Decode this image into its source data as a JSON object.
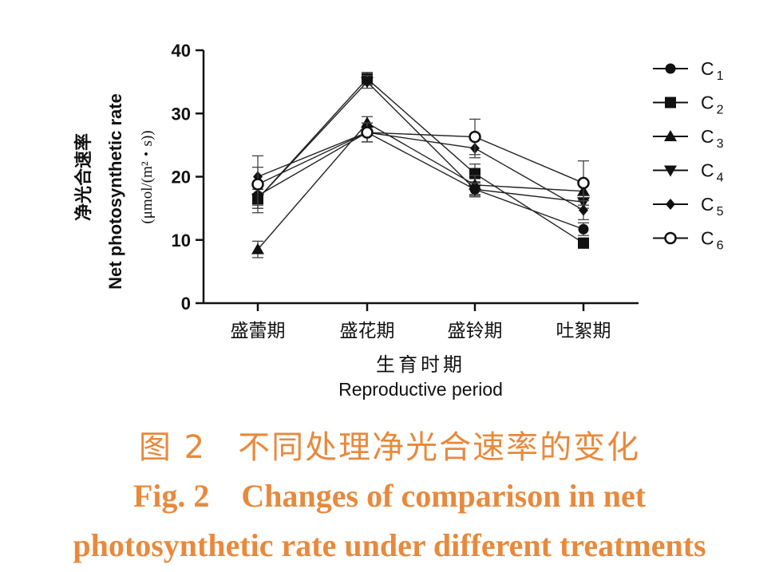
{
  "chart_data": {
    "type": "line",
    "ylabel_cn": "净光合速率",
    "ylabel_en": "Net photosynthetic rate",
    "ylabel_unit": "(μmol/(m²・s))",
    "xlabel_cn": "生育时期",
    "xlabel_en": "Reproductive period",
    "categories": [
      "盛蕾期",
      "盛花期",
      "盛铃期",
      "吐絮期"
    ],
    "ylim": [
      0,
      40
    ],
    "yticks": [
      0,
      10,
      20,
      30,
      40
    ],
    "grid": false,
    "legend_position": "right",
    "series": [
      {
        "name": "C",
        "sub": "1",
        "marker": "circle",
        "values": [
          17.0,
          27.0,
          18.0,
          11.7
        ],
        "err": [
          1.5,
          1.5,
          1.2,
          1.0
        ]
      },
      {
        "name": "C",
        "sub": "2",
        "marker": "square",
        "values": [
          16.5,
          35.5,
          20.5,
          9.5
        ],
        "err": [
          1.5,
          1.0,
          1.5,
          0.8
        ]
      },
      {
        "name": "C",
        "sub": "3",
        "marker": "triangle-up",
        "values": [
          8.5,
          28.5,
          18.7,
          17.7
        ],
        "err": [
          1.3,
          1.0,
          1.5,
          1.2
        ]
      },
      {
        "name": "C",
        "sub": "4",
        "marker": "triangle-down",
        "values": [
          16.5,
          35.0,
          18.0,
          16.0
        ],
        "err": [
          1.5,
          1.0,
          1.0,
          1.0
        ]
      },
      {
        "name": "C",
        "sub": "5",
        "marker": "diamond",
        "values": [
          20.0,
          27.0,
          24.5,
          14.7
        ],
        "err": [
          1.5,
          1.5,
          1.5,
          1.5
        ]
      },
      {
        "name": "C",
        "sub": "6",
        "marker": "circle-open",
        "values": [
          18.8,
          27.0,
          26.3,
          19.0
        ],
        "err": [
          4.5,
          1.5,
          2.8,
          3.5
        ]
      }
    ]
  },
  "caption": {
    "cn_label": "图 2",
    "cn_text": "不同处理净光合速率的变化",
    "en_label": "Fig. 2",
    "en_line1": "Changes of comparison in net",
    "en_line2": "photosynthetic rate under different treatments"
  }
}
